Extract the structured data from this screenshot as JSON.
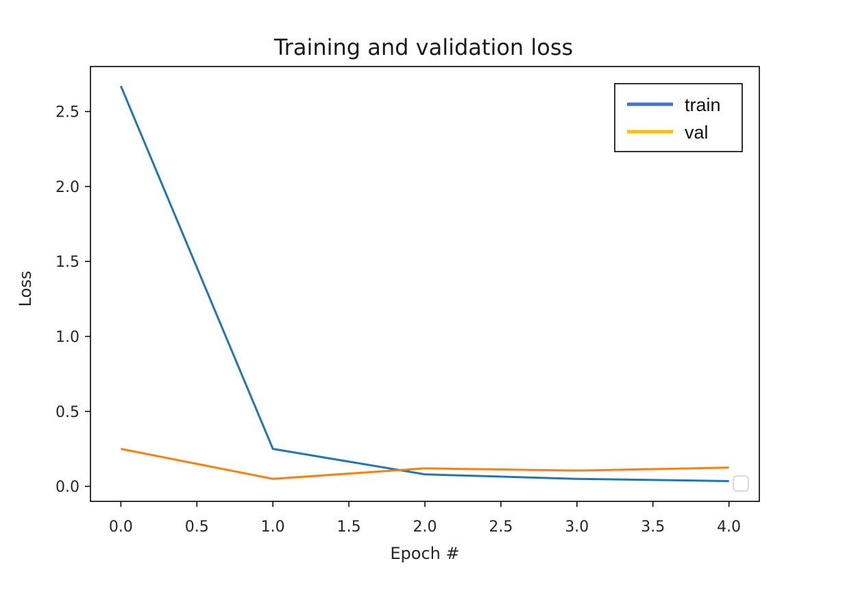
{
  "chart_data": {
    "type": "line",
    "title": "Training and validation loss",
    "xlabel": "Epoch #",
    "ylabel": "Loss",
    "xlim": [
      -0.2,
      4.2
    ],
    "ylim": [
      -0.1,
      2.8
    ],
    "x_ticks": [
      "0.0",
      "0.5",
      "1.0",
      "1.5",
      "2.0",
      "2.5",
      "3.0",
      "3.5",
      "4.0"
    ],
    "y_ticks": [
      "0.0",
      "0.5",
      "1.0",
      "1.5",
      "2.0",
      "2.5"
    ],
    "grid": false,
    "legend_position": "top-right",
    "x": [
      0,
      1,
      2,
      3,
      4
    ],
    "series": [
      {
        "name": "train",
        "values": [
          2.67,
          0.25,
          0.08,
          0.05,
          0.035
        ],
        "color": "#1f77b4",
        "legend_color": "#4472c4"
      },
      {
        "name": "val",
        "values": [
          0.25,
          0.05,
          0.12,
          0.105,
          0.125
        ],
        "color": "#ff7f0e",
        "legend_color": "#ffc000"
      }
    ]
  }
}
